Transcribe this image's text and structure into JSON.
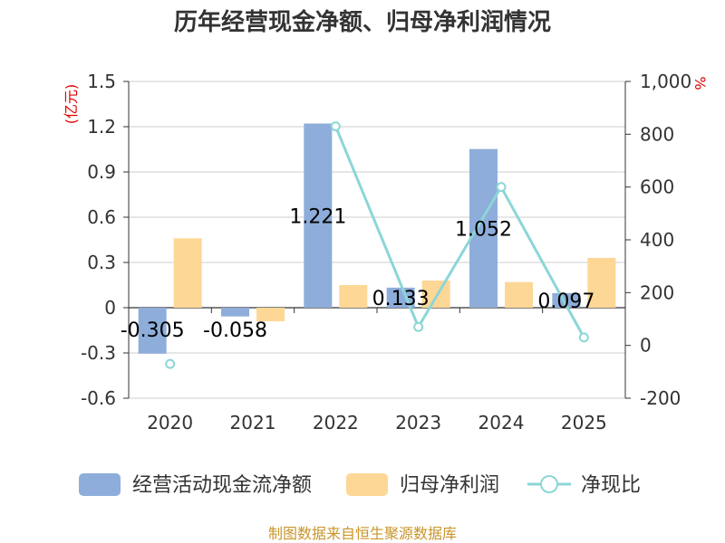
{
  "chart_data": {
    "type": "bar",
    "title": "历年经营现金净额、归母净利润情况",
    "categories": [
      "2020",
      "2021",
      "2022",
      "2023",
      "2024",
      "2025"
    ],
    "left_axis": {
      "unit": "(亿元)",
      "ticks": [
        "1.5",
        "1.2",
        "0.9",
        "0.6",
        "0.3",
        "0",
        "-0.3",
        "-0.6"
      ],
      "ylim": [
        -0.6,
        1.5
      ]
    },
    "right_axis": {
      "unit": "%",
      "ticks": [
        "1,000",
        "800",
        "600",
        "400",
        "200",
        "0",
        "-200"
      ],
      "ylim": [
        -200,
        1000
      ]
    },
    "series": [
      {
        "name": "经营活动现金流净额",
        "type": "bar",
        "axis": "left",
        "color": "#8eadda",
        "values": [
          -0.305,
          -0.058,
          1.221,
          0.133,
          1.052,
          0.097
        ],
        "labels": [
          "-0.305",
          "-0.058",
          "1.221",
          "0.133",
          "1.052",
          "0.097"
        ]
      },
      {
        "name": "归母净利润",
        "type": "bar",
        "axis": "left",
        "color": "#fdd795",
        "values": [
          0.46,
          -0.09,
          0.15,
          0.18,
          0.17,
          0.33
        ]
      },
      {
        "name": "净现比",
        "type": "line",
        "axis": "right",
        "color": "#8cd6d7",
        "values": [
          -70,
          null,
          830,
          70,
          600,
          30
        ]
      }
    ],
    "source": "制图数据来自恒生聚源数据库"
  }
}
